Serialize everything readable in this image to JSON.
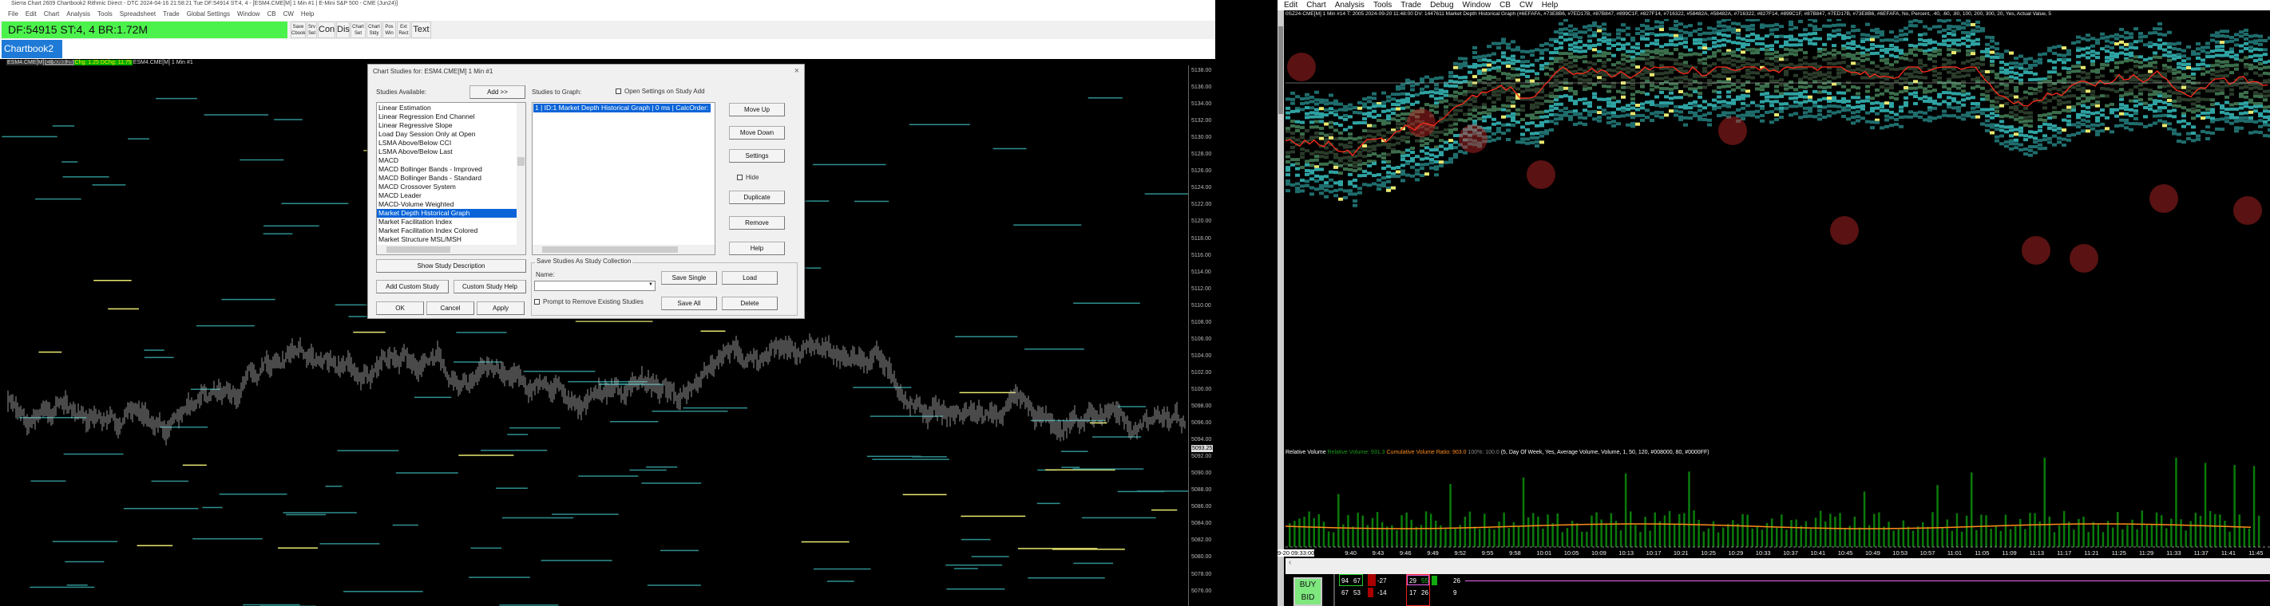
{
  "left_window": {
    "title": "Sierra Chart 2609 Chartbook2 Rithmic Direct - DTC 2024-04-16  21:58:21 Tue DF:54914  ST:4, 4 - [ESM4.CME[M]  1 Min  #1 | E-Mini S&P 500 - CME (Jun24)]",
    "menu": [
      "File",
      "Edit",
      "Chart",
      "Analysis",
      "Tools",
      "Spreadsheet",
      "Trade",
      "Global Settings",
      "Window",
      "CB",
      "CW",
      "Help"
    ],
    "status_box": "DF:54915  ST:4, 4  BR:1.72M",
    "toolbar": [
      {
        "line1": "Save",
        "line2": "Cbook"
      },
      {
        "line1": "Srv",
        "line2": "Set"
      },
      {
        "big": "Con"
      },
      {
        "big": "Dis"
      },
      {
        "line1": "Chart",
        "line2": "Set"
      },
      {
        "line1": "Chart",
        "line2": "Stdy"
      },
      {
        "line1": "Pos",
        "line2": "Win"
      },
      {
        "line1": "Ext",
        "line2": "Rect"
      },
      {
        "big": "Text"
      }
    ],
    "chartbook_tab": "Chartbook2",
    "info": {
      "symbol": "ESM4.CME[M]",
      "close": "C: 5093.25",
      "chg": "Chg: 1.25",
      "dchg": "DChg: 11.75",
      "label": "ESM4.CME[M]  1 Min  #1"
    },
    "price_axis": [
      "5138.00",
      "5136.00",
      "5134.00",
      "5132.00",
      "5130.00",
      "5128.00",
      "5126.00",
      "5124.00",
      "5122.00",
      "5120.00",
      "5118.00",
      "5116.00",
      "5114.00",
      "5112.00",
      "5110.00",
      "5108.00",
      "5106.00",
      "5104.00",
      "5102.00",
      "5100.00",
      "5098.00",
      "5096.00",
      "5094.00",
      "5092.00",
      "5090.00",
      "5088.00",
      "5086.00",
      "5084.00",
      "5082.00",
      "5080.00",
      "5078.00",
      "5076.00"
    ],
    "last_price": "5093.25"
  },
  "dialog": {
    "title": "Chart Studies for: ESM4.CME[M]  1 Min  #1",
    "studies_available_label": "Studies Available:",
    "add_button": "Add >>",
    "studies_available": [
      "Linear Estimation",
      "Linear Regression End Channel",
      "Linear Regressive Slope",
      "Load Day Session Only at Open",
      "LSMA Above/Below CCI",
      "LSMA Above/Below Last",
      "MACD",
      "MACD Bollinger Bands - Improved",
      "MACD Bollinger Bands - Standard",
      "MACD Crossover System",
      "MACD Leader",
      "MACD-Volume Weighted",
      "Market Depth Historical Graph",
      "Market Facilitation Index",
      "Market Facilitation Index Colored",
      "Market Structure MSL/MSH"
    ],
    "selected_available": "Market Depth Historical Graph",
    "studies_to_graph_label": "Studies to Graph:",
    "open_settings_label": "Open Settings on Study Add",
    "studies_to_graph": [
      "1 | ID:1  Market Depth Historical Graph | 0 ms | CalcOrder: 1"
    ],
    "side_buttons": [
      "Move Up",
      "Move Down",
      "Settings",
      "Duplicate",
      "Remove",
      "Help"
    ],
    "hide_label": "Hide",
    "show_description": "Show Study Description",
    "add_custom": "Add Custom Study",
    "custom_help": "Custom Study Help",
    "ok": "OK",
    "cancel": "Cancel",
    "apply": "Apply",
    "collection_group": "Save Studies As Study Collection",
    "name_label": "Name:",
    "name_value": "",
    "save_single": "Save Single",
    "load": "Load",
    "save_all": "Save All",
    "delete": "Delete",
    "prompt_remove_label": "Prompt to Remove Existing Studies"
  },
  "right_window": {
    "menu": [
      "Edit",
      "Chart",
      "Analysis",
      "Tools",
      "Trade",
      "Debug",
      "Window",
      "CB",
      "CW",
      "Help"
    ],
    "header": "0SZ24-CME[M]  1 Min  #14  T: 2005 2024-09-20 11:48:00 DV: 1447611 Market Depth Historical Graph   (#6EFAFA, #73E8B6, #7ED17B, #87B847, #899C1F, #827F14, #716322, #58482A, #58482A, #716322, #827F14, #899C1F, #87B847, #7ED17B, #73E8B6, #6EFAFA, No, Percent, .40, .60, .80, 100, 200, 300, 20, Yes, Actual Value, 5",
    "volume_header": {
      "name": "Relative Volume",
      "rel": "Relative Volume: 931.3",
      "cum": "Cumulative Volume Ratio: 903.0",
      "pct": "100%: 100.0",
      "params": "(5, Day Of Week, Yes, Average Volume, Volume, 1, 50, 120, #008000, 80, #0000FF)"
    },
    "time_axis": [
      "9-20 09:33:00",
      "9:40",
      "9:43",
      "9:46",
      "9:49",
      "9:52",
      "9:55",
      "9:58",
      "10:01",
      "10:05",
      "10:09",
      "10:13",
      "10:17",
      "10:21",
      "10:25",
      "10:29",
      "10:33",
      "10:37",
      "10:41",
      "10:45",
      "10:49",
      "10:53",
      "10:57",
      "11:01",
      "11:05",
      "11:09",
      "11:13",
      "11:17",
      "11:21",
      "11:25",
      "11:29",
      "11:33",
      "11:37",
      "11:41",
      "11:45"
    ],
    "buy_bid": [
      "BUY",
      "BID"
    ],
    "dom_rows": [
      [
        "94",
        "67",
        "-27",
        "29",
        "55",
        "26"
      ],
      [
        "67",
        "53",
        "-14",
        "17",
        "26",
        "9"
      ]
    ],
    "colors": {
      "price_line": "#ff2a1a",
      "heat_cyan": "#6efafa",
      "volume_bar": "#008000",
      "volume_avg": "#ff8c1a"
    }
  }
}
